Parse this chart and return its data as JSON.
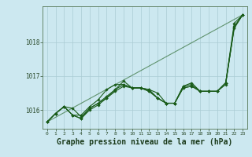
{
  "background_color": "#cce8f0",
  "grid_color": "#aaccd4",
  "line_color": "#1a5c1a",
  "xlabel": "Graphe pression niveau de la mer (hPa)",
  "xlabel_fontsize": 7,
  "xlim": [
    -0.5,
    23.5
  ],
  "ylim": [
    1015.45,
    1019.05
  ],
  "yticks": [
    1016,
    1017,
    1018
  ],
  "xticks": [
    0,
    1,
    2,
    3,
    4,
    5,
    6,
    7,
    8,
    9,
    10,
    11,
    12,
    13,
    14,
    15,
    16,
    17,
    18,
    19,
    20,
    21,
    22,
    23
  ],
  "series": [
    [
      1015.65,
      1015.9,
      1016.1,
      1016.05,
      1015.8,
      1016.05,
      1016.2,
      1016.4,
      1016.6,
      1016.75,
      1016.65,
      1016.65,
      1016.6,
      1016.35,
      1016.2,
      1016.2,
      1016.65,
      1016.7,
      1016.55,
      1016.55,
      1016.55,
      1016.75,
      1018.45,
      1018.8
    ],
    [
      1015.65,
      1015.9,
      1016.1,
      1015.85,
      1015.85,
      1016.1,
      1016.3,
      1016.6,
      1016.75,
      1016.75,
      1016.65,
      1016.65,
      1016.6,
      1016.5,
      1016.2,
      1016.2,
      1016.7,
      1016.8,
      1016.55,
      1016.55,
      1016.55,
      1016.8,
      1018.55,
      1018.8
    ],
    [
      1015.65,
      1015.9,
      1016.1,
      1015.85,
      1015.75,
      1016.0,
      1016.15,
      1016.35,
      1016.6,
      1016.85,
      1016.65,
      1016.65,
      1016.55,
      1016.35,
      1016.2,
      1016.2,
      1016.7,
      1016.75,
      1016.55,
      1016.55,
      1016.55,
      1016.8,
      1018.4,
      1018.8
    ],
    [
      1015.65,
      1015.9,
      1016.1,
      1015.85,
      1015.75,
      1016.05,
      1016.2,
      1016.35,
      1016.55,
      1016.7,
      1016.65,
      1016.65,
      1016.55,
      1016.35,
      1016.2,
      1016.2,
      1016.65,
      1016.7,
      1016.55,
      1016.55,
      1016.55,
      1016.8,
      1018.45,
      1018.8
    ]
  ],
  "trend_line": [
    1015.65,
    1018.8
  ]
}
